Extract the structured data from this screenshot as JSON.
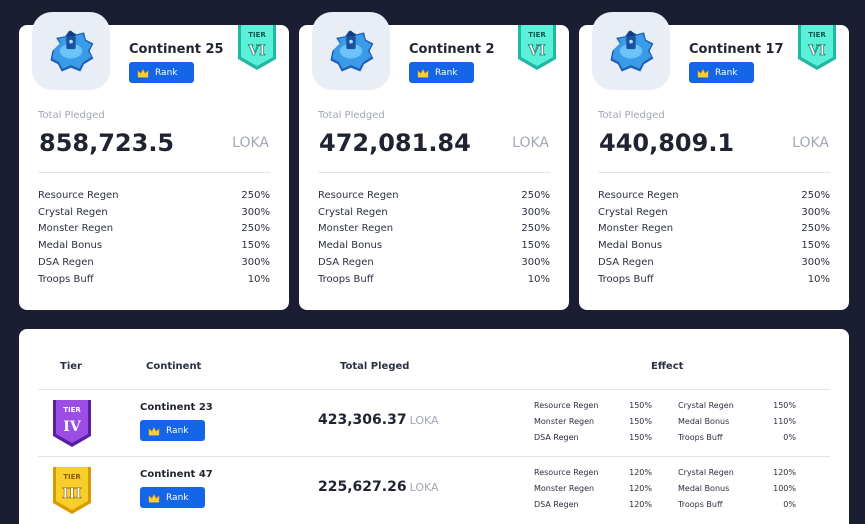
{
  "cards": [
    {
      "continent": "Continent 25",
      "rank_label": "Rank",
      "tier_label": "TIER",
      "tier_numeral": "VI",
      "pledged_label": "Total Pledged",
      "pledged_value": "858,723.5",
      "unit": "LOKA",
      "effects": [
        {
          "name": "Resource Regen",
          "value": "250%"
        },
        {
          "name": "Crystal Regen",
          "value": "300%"
        },
        {
          "name": "Monster Regen",
          "value": "250%"
        },
        {
          "name": "Medal Bonus",
          "value": "150%"
        },
        {
          "name": "DSA Regen",
          "value": "300%"
        },
        {
          "name": "Troops Buff",
          "value": "10%"
        }
      ]
    },
    {
      "continent": "Continent 2",
      "rank_label": "Rank",
      "tier_label": "TIER",
      "tier_numeral": "VI",
      "pledged_label": "Total Pledged",
      "pledged_value": "472,081.84",
      "unit": "LOKA",
      "effects": [
        {
          "name": "Resource Regen",
          "value": "250%"
        },
        {
          "name": "Crystal Regen",
          "value": "300%"
        },
        {
          "name": "Monster Regen",
          "value": "250%"
        },
        {
          "name": "Medal Bonus",
          "value": "150%"
        },
        {
          "name": "DSA Regen",
          "value": "300%"
        },
        {
          "name": "Troops Buff",
          "value": "10%"
        }
      ]
    },
    {
      "continent": "Continent 17",
      "rank_label": "Rank",
      "tier_label": "TIER",
      "tier_numeral": "VI",
      "pledged_label": "Total Pledged",
      "pledged_value": "440,809.1",
      "unit": "LOKA",
      "effects": [
        {
          "name": "Resource Regen",
          "value": "250%"
        },
        {
          "name": "Crystal Regen",
          "value": "300%"
        },
        {
          "name": "Monster Regen",
          "value": "250%"
        },
        {
          "name": "Medal Bonus",
          "value": "150%"
        },
        {
          "name": "DSA Regen",
          "value": "300%"
        },
        {
          "name": "Troops Buff",
          "value": "10%"
        }
      ]
    }
  ],
  "table": {
    "headers": {
      "tier": "Tier",
      "continent": "Continent",
      "total": "Total Pleged",
      "effect": "Effect"
    },
    "rows": [
      {
        "tier_label": "TIER",
        "tier_numeral": "IV",
        "continent": "Continent 23",
        "rank_label": "Rank",
        "total": "423,306.37",
        "unit": "LOKA",
        "effects_left": [
          {
            "name": "Resource Regen",
            "value": "150%"
          },
          {
            "name": "Monster Regen",
            "value": "150%"
          },
          {
            "name": "DSA Regen",
            "value": "150%"
          }
        ],
        "effects_right": [
          {
            "name": "Crystal Regen",
            "value": "150%"
          },
          {
            "name": "Medal Bonus",
            "value": "110%"
          },
          {
            "name": "Troops Buff",
            "value": "0%"
          }
        ]
      },
      {
        "tier_label": "TIER",
        "tier_numeral": "III",
        "continent": "Continent 47",
        "rank_label": "Rank",
        "total": "225,627.26",
        "unit": "LOKA",
        "effects_left": [
          {
            "name": "Resource Regen",
            "value": "120%"
          },
          {
            "name": "Monster Regen",
            "value": "120%"
          },
          {
            "name": "DSA Regen",
            "value": "120%"
          }
        ],
        "effects_right": [
          {
            "name": "Crystal Regen",
            "value": "120%"
          },
          {
            "name": "Medal Bonus",
            "value": "100%"
          },
          {
            "name": "Troops Buff",
            "value": "0%"
          }
        ]
      }
    ]
  },
  "colors": {
    "background": "#1b1d33",
    "rank_button": "#1565e8",
    "tier_vi": "#3fe0c8",
    "tier_iv": "#8a3fd6",
    "tier_iii": "#f5c518"
  },
  "icons": {
    "emblem": "continent-island-icon",
    "crown": "crown-icon",
    "tier": "tier-banner-icon"
  }
}
